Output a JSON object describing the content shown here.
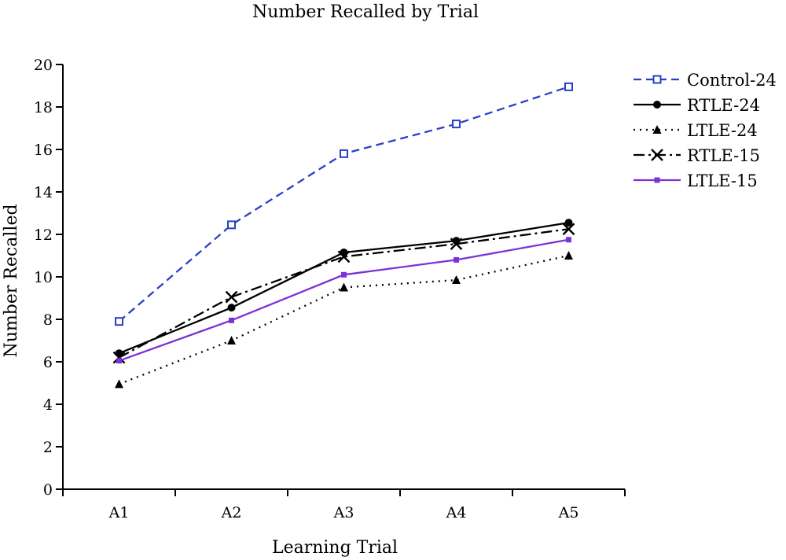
{
  "chart_data": {
    "type": "line",
    "title": "Number Recalled by Trial",
    "xlabel": "Learning Trial",
    "ylabel": "Number Recalled",
    "categories": [
      "A1",
      "A2",
      "A3",
      "A4",
      "A5"
    ],
    "ylim": [
      0,
      20
    ],
    "yticks": [
      "0",
      "2",
      "4",
      "6",
      "8",
      "10",
      "12",
      "14",
      "16",
      "18",
      "20"
    ],
    "legend_position": "top-right",
    "grid": false,
    "series": [
      {
        "name": "Control-24",
        "values": [
          7.9,
          12.45,
          15.8,
          17.2,
          18.95
        ],
        "color": "#2a3fc7",
        "dash": "10,6",
        "marker": "open-square"
      },
      {
        "name": "RTLE-24",
        "values": [
          6.4,
          8.55,
          11.15,
          11.7,
          12.55
        ],
        "color": "#000000",
        "dash": "",
        "marker": "filled-circle"
      },
      {
        "name": "LTLE-24",
        "values": [
          4.95,
          7.0,
          9.5,
          9.85,
          11.0
        ],
        "color": "#000000",
        "dash": "2,6",
        "marker": "filled-triangle"
      },
      {
        "name": "RTLE-15",
        "values": [
          6.2,
          9.05,
          10.95,
          11.55,
          12.25
        ],
        "color": "#000000",
        "dash": "14,5,3,5",
        "marker": "x"
      },
      {
        "name": "LTLE-15",
        "values": [
          6.05,
          7.95,
          10.1,
          10.8,
          11.75
        ],
        "color": "#7a33d6",
        "dash": "",
        "marker": "small-square"
      }
    ]
  }
}
